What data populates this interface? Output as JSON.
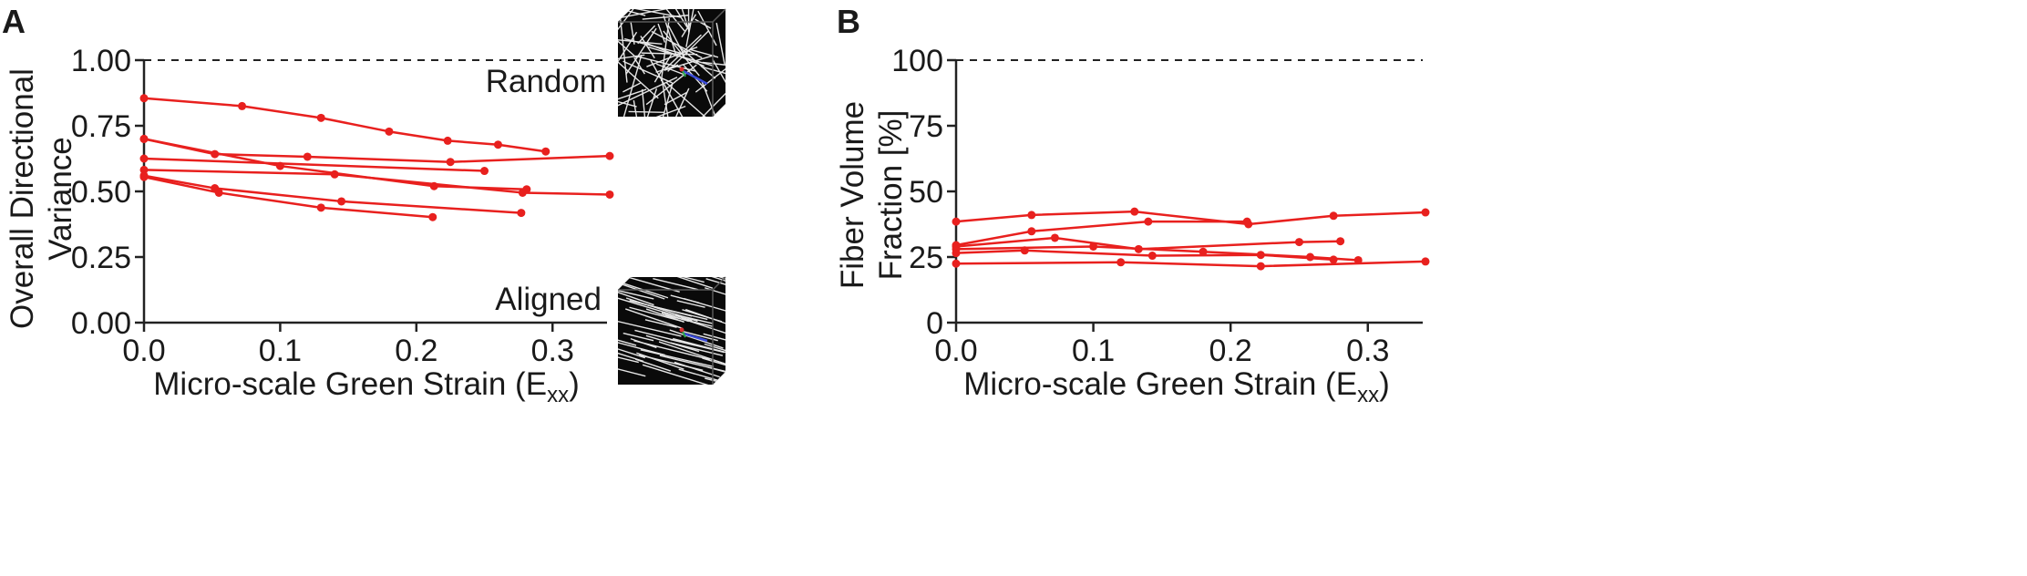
{
  "panels": [
    {
      "letter": "A"
    },
    {
      "letter": "B"
    }
  ],
  "chart_data": [
    {
      "type": "line",
      "panel": "A",
      "ylabel_line1": "Overall Directional",
      "ylabel_line2": "Variance",
      "xlabel": "Micro-scale Green Strain (E",
      "xlabel_sub": "xx",
      "xlabel_close": ")",
      "xlim": [
        0,
        0.34
      ],
      "ylim": [
        0,
        1.0
      ],
      "xticks": [
        0.0,
        0.1,
        0.2,
        0.3
      ],
      "xtick_labels": [
        "0.0",
        "0.1",
        "0.2",
        "0.3"
      ],
      "yticks": [
        0.0,
        0.25,
        0.5,
        0.75,
        1.0
      ],
      "ytick_labels": [
        "0.00",
        "0.25",
        "0.50",
        "0.75",
        "1.00"
      ],
      "reference_line": 1.0,
      "annotations": [
        "Random",
        "Aligned"
      ],
      "inset_icons": [
        "random-fiber-network-icon",
        "aligned-fiber-network-icon"
      ],
      "line_color": "#e8201e",
      "series": [
        {
          "x": [
            0.0,
            0.072,
            0.13,
            0.18,
            0.223,
            0.26,
            0.295
          ],
          "y": [
            0.855,
            0.825,
            0.78,
            0.728,
            0.693,
            0.678,
            0.652
          ]
        },
        {
          "x": [
            0.0,
            0.052,
            0.12,
            0.225,
            0.342
          ],
          "y": [
            0.7,
            0.642,
            0.632,
            0.612,
            0.635
          ]
        },
        {
          "x": [
            0.0,
            0.1,
            0.213,
            0.281
          ],
          "y": [
            0.7,
            0.597,
            0.52,
            0.508
          ]
        },
        {
          "x": [
            0.0,
            0.25
          ],
          "y": [
            0.625,
            0.578
          ]
        },
        {
          "x": [
            0.0,
            0.14,
            0.278,
            0.342
          ],
          "y": [
            0.582,
            0.565,
            0.495,
            0.488
          ]
        },
        {
          "x": [
            0.0,
            0.052,
            0.145,
            0.277
          ],
          "y": [
            0.56,
            0.512,
            0.462,
            0.418
          ]
        },
        {
          "x": [
            0.0,
            0.055,
            0.13,
            0.212
          ],
          "y": [
            0.555,
            0.495,
            0.438,
            0.402
          ]
        }
      ]
    },
    {
      "type": "line",
      "panel": "B",
      "ylabel_line1": "Fiber Volume",
      "ylabel_line2": "Fraction [%]",
      "xlabel": "Micro-scale Green Strain (E",
      "xlabel_sub": "xx",
      "xlabel_close": ")",
      "xlim": [
        0,
        0.34
      ],
      "ylim": [
        0,
        100
      ],
      "xticks": [
        0.0,
        0.1,
        0.2,
        0.3
      ],
      "xtick_labels": [
        "0.0",
        "0.1",
        "0.2",
        "0.3"
      ],
      "yticks": [
        0,
        25,
        50,
        75,
        100
      ],
      "ytick_labels": [
        "0",
        "25",
        "50",
        "75",
        "100"
      ],
      "reference_line": 100,
      "line_color": "#e8201e",
      "series": [
        {
          "x": [
            0.0,
            0.055,
            0.13,
            0.213,
            0.275,
            0.342
          ],
          "y": [
            38.5,
            41.0,
            42.3,
            37.5,
            40.7,
            42.0
          ]
        },
        {
          "x": [
            0.0,
            0.055,
            0.14,
            0.212
          ],
          "y": [
            29.5,
            34.8,
            38.5,
            38.5
          ]
        },
        {
          "x": [
            0.0,
            0.072,
            0.133,
            0.25,
            0.28
          ],
          "y": [
            29.0,
            32.3,
            28.0,
            30.7,
            31.0
          ]
        },
        {
          "x": [
            0.0,
            0.1,
            0.18,
            0.258,
            0.293
          ],
          "y": [
            28.0,
            29.0,
            27.0,
            25.0,
            23.8
          ]
        },
        {
          "x": [
            0.0,
            0.05,
            0.143,
            0.222,
            0.275
          ],
          "y": [
            26.5,
            27.5,
            25.5,
            25.8,
            24.0
          ]
        },
        {
          "x": [
            0.0,
            0.12,
            0.222,
            0.342
          ],
          "y": [
            22.5,
            23.0,
            21.5,
            23.3
          ]
        }
      ]
    }
  ]
}
